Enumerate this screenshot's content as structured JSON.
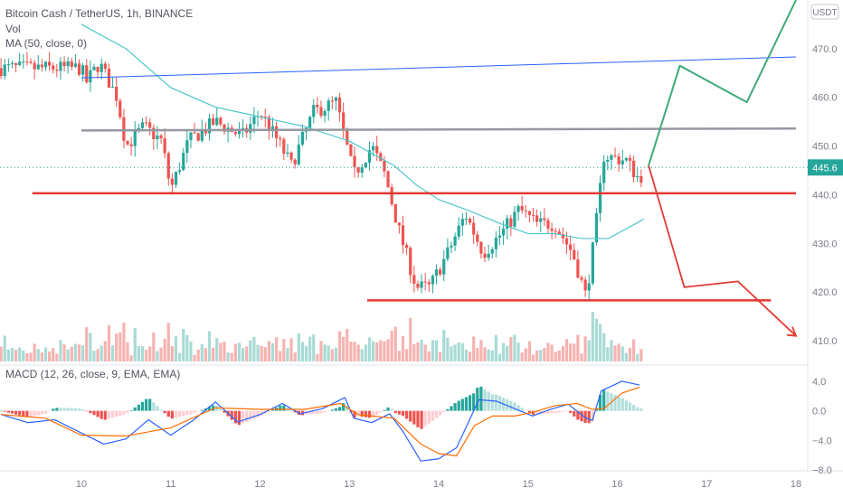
{
  "header": {
    "title": "Bitcoin Cash / TetherUS, 1h, BINANCE",
    "vol": "Vol",
    "ma": "MA (50, close, 0)",
    "macd": "MACD (12, 26, close, 9, EMA, EMA)",
    "currency": "USDT"
  },
  "colors": {
    "up": "#26a69a",
    "down": "#ef5350",
    "ma": "#4dc7c9",
    "macd_line": "#2962ff",
    "signal_line": "#ff6d00",
    "resistance": "#9598a1",
    "trend": "#2962ff",
    "support": "#e53935",
    "projection_up": "#3fa97a",
    "projection_down": "#e53935"
  },
  "chart_data": [
    {
      "type": "candlestick",
      "title": "Bitcoin Cash / TetherUS, 1h, BINANCE",
      "ylim": [
        405,
        480
      ],
      "y_ticks": [
        410.0,
        420.0,
        430.0,
        440.0,
        450.0,
        460.0,
        470.0
      ],
      "x_ticks": [
        "10",
        "11",
        "12",
        "13",
        "14",
        "15",
        "16",
        "17",
        "18"
      ],
      "last_price": 445.6,
      "last_price_label": "445.6",
      "path_points": [
        [
          0,
          466
        ],
        [
          0.05,
          463
        ],
        [
          0.2,
          467
        ],
        [
          0.4,
          460
        ],
        [
          0.5,
          450
        ],
        [
          0.7,
          454
        ],
        [
          0.9,
          451
        ],
        [
          1.0,
          441
        ],
        [
          1.2,
          451
        ],
        [
          1.5,
          455
        ],
        [
          1.8,
          452
        ],
        [
          2.0,
          457
        ],
        [
          2.2,
          451
        ],
        [
          2.35,
          446
        ],
        [
          2.6,
          457
        ],
        [
          2.85,
          459
        ],
        [
          2.97,
          450
        ],
        [
          3.05,
          444
        ],
        [
          3.25,
          450
        ],
        [
          3.4,
          444
        ],
        [
          3.55,
          433
        ],
        [
          3.75,
          421
        ],
        [
          3.9,
          421
        ],
        [
          4.1,
          428
        ],
        [
          4.3,
          436
        ],
        [
          4.5,
          428
        ],
        [
          4.7,
          432
        ],
        [
          4.9,
          437
        ],
        [
          5.1,
          434
        ],
        [
          5.3,
          434
        ],
        [
          5.5,
          428
        ],
        [
          5.65,
          419
        ],
        [
          5.75,
          432
        ],
        [
          5.85,
          448
        ],
        [
          6.1,
          447
        ],
        [
          6.25,
          443
        ],
        [
          6.3,
          445.6
        ]
      ],
      "ma50": [
        [
          0.0,
          475
        ],
        [
          0.5,
          470
        ],
        [
          1.0,
          462
        ],
        [
          1.5,
          458
        ],
        [
          2.0,
          456
        ],
        [
          2.5,
          454
        ],
        [
          3.0,
          451
        ],
        [
          3.5,
          446
        ],
        [
          3.75,
          442
        ],
        [
          4.0,
          439
        ],
        [
          4.3,
          437
        ],
        [
          4.7,
          434
        ],
        [
          5.0,
          432
        ],
        [
          5.3,
          432
        ],
        [
          5.6,
          431
        ],
        [
          5.9,
          431
        ],
        [
          6.2,
          434
        ],
        [
          6.3,
          435
        ]
      ],
      "drawings": {
        "trend_line": [
          [
            0,
            464
          ],
          [
            8.0,
            468.3
          ]
        ],
        "resistance": [
          [
            0,
            453.2
          ],
          [
            8.0,
            453.6
          ]
        ],
        "support_upper": [
          [
            -0.55,
            440.3
          ],
          [
            8.0,
            440.3
          ]
        ],
        "support_lower": [
          [
            3.2,
            418.3
          ],
          [
            7.72,
            418.3
          ]
        ],
        "projection_up": [
          [
            6.35,
            446
          ],
          [
            6.7,
            466.5
          ],
          [
            7.45,
            459
          ],
          [
            8.0,
            480
          ]
        ],
        "projection_down": [
          [
            6.35,
            446
          ],
          [
            6.75,
            421
          ],
          [
            7.35,
            422.2
          ],
          [
            8.0,
            411
          ]
        ]
      },
      "volume": {
        "ylim": [
          0,
          100
        ]
      }
    },
    {
      "type": "macd",
      "title": "MACD (12, 26, close, 9, EMA, EMA)",
      "ylim": [
        -8.0,
        6.2
      ],
      "y_ticks": [
        -8.0,
        -4.0,
        0.0,
        4.0
      ],
      "y_tick_labels": [
        "−8.0",
        "−4.0",
        "0.0",
        "4.0"
      ],
      "macd_line": [
        [
          -0.9,
          -0.5
        ],
        [
          -0.6,
          -1.6
        ],
        [
          -0.3,
          -1.2
        ],
        [
          0.0,
          -3.0
        ],
        [
          0.25,
          -4.5
        ],
        [
          0.5,
          -3.8
        ],
        [
          0.75,
          -1.2
        ],
        [
          1.0,
          -3.3
        ],
        [
          1.25,
          -1.3
        ],
        [
          1.5,
          1.2
        ],
        [
          1.75,
          -1.5
        ],
        [
          2.0,
          -0.5
        ],
        [
          2.25,
          1.0
        ],
        [
          2.45,
          -0.4
        ],
        [
          2.7,
          0.3
        ],
        [
          2.95,
          1.8
        ],
        [
          3.05,
          -1.0
        ],
        [
          3.25,
          -1.6
        ],
        [
          3.45,
          -0.4
        ],
        [
          3.6,
          -2.8
        ],
        [
          3.8,
          -6.8
        ],
        [
          4.0,
          -6.5
        ],
        [
          4.2,
          -5.0
        ],
        [
          4.45,
          1.5
        ],
        [
          4.65,
          1.3
        ],
        [
          4.85,
          0.3
        ],
        [
          5.05,
          -0.7
        ],
        [
          5.25,
          0.2
        ],
        [
          5.45,
          0.9
        ],
        [
          5.65,
          -1.0
        ],
        [
          5.72,
          -1.3
        ],
        [
          5.82,
          2.7
        ],
        [
          6.05,
          4.0
        ],
        [
          6.25,
          3.5
        ]
      ],
      "signal_line": [
        [
          -0.9,
          -0.5
        ],
        [
          -0.4,
          -1.0
        ],
        [
          0.0,
          -3.3
        ],
        [
          0.5,
          -3.4
        ],
        [
          1.0,
          -2.3
        ],
        [
          1.5,
          0.4
        ],
        [
          2.0,
          0.2
        ],
        [
          2.5,
          0.2
        ],
        [
          2.9,
          1.0
        ],
        [
          3.1,
          -0.5
        ],
        [
          3.5,
          -1.0
        ],
        [
          3.8,
          -4.5
        ],
        [
          4.0,
          -5.8
        ],
        [
          4.2,
          -6.1
        ],
        [
          4.4,
          -2.0
        ],
        [
          4.6,
          -0.7
        ],
        [
          4.85,
          -0.7
        ],
        [
          5.05,
          -0.2
        ],
        [
          5.3,
          0.7
        ],
        [
          5.55,
          1.0
        ],
        [
          5.72,
          0.2
        ],
        [
          5.85,
          0.3
        ],
        [
          6.05,
          2.4
        ],
        [
          6.25,
          3.2
        ]
      ]
    }
  ]
}
